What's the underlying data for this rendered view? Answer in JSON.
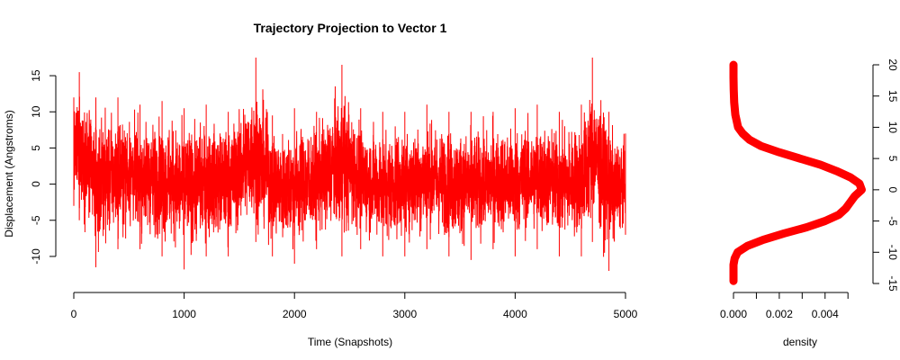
{
  "chart_data": [
    {
      "type": "line",
      "title": "Trajectory Projection to Vector 1",
      "xlabel": "Time (Snapshots)",
      "ylabel": "Displacement (Angstroms)",
      "xlim": [
        0,
        5000
      ],
      "ylim": [
        -12.5,
        18
      ],
      "x_ticks": [
        0,
        1000,
        2000,
        3000,
        4000,
        5000
      ],
      "y_ticks": [
        -10,
        -5,
        0,
        5,
        10,
        15
      ],
      "n_points": 5000,
      "grid": false,
      "colors": {
        "line": "#ff0000",
        "axis": "#000000"
      },
      "envelope": [
        {
          "x": 0,
          "min": -3,
          "max": 12
        },
        {
          "x": 50,
          "min": -5,
          "max": 15.5
        },
        {
          "x": 200,
          "min": -11.5,
          "max": 12
        },
        {
          "x": 400,
          "min": -9,
          "max": 12
        },
        {
          "x": 600,
          "min": -9,
          "max": 11
        },
        {
          "x": 800,
          "min": -10,
          "max": 11.5
        },
        {
          "x": 1000,
          "min": -11.8,
          "max": 10.5
        },
        {
          "x": 1200,
          "min": -10,
          "max": 11
        },
        {
          "x": 1400,
          "min": -10,
          "max": 10
        },
        {
          "x": 1650,
          "min": -8,
          "max": 17.5
        },
        {
          "x": 1800,
          "min": -10,
          "max": 9.5
        },
        {
          "x": 2000,
          "min": -11,
          "max": 10.5
        },
        {
          "x": 2200,
          "min": -9,
          "max": 10
        },
        {
          "x": 2430,
          "min": -10,
          "max": 16.5
        },
        {
          "x": 2600,
          "min": -9,
          "max": 10.5
        },
        {
          "x": 2800,
          "min": -10,
          "max": 10
        },
        {
          "x": 3000,
          "min": -10,
          "max": 10
        },
        {
          "x": 3200,
          "min": -9,
          "max": 11
        },
        {
          "x": 3400,
          "min": -10,
          "max": 10
        },
        {
          "x": 3600,
          "min": -10.5,
          "max": 10
        },
        {
          "x": 3800,
          "min": -9,
          "max": 10
        },
        {
          "x": 4000,
          "min": -10,
          "max": 10.5
        },
        {
          "x": 4200,
          "min": -9,
          "max": 11
        },
        {
          "x": 4400,
          "min": -10,
          "max": 10
        },
        {
          "x": 4600,
          "min": -10,
          "max": 11
        },
        {
          "x": 4700,
          "min": -8,
          "max": 17.5
        },
        {
          "x": 4850,
          "min": -12,
          "max": 10
        },
        {
          "x": 5000,
          "min": -7,
          "max": 7
        }
      ]
    },
    {
      "type": "area",
      "title": "",
      "xlabel": "density",
      "ylabel": "",
      "xlim": [
        0,
        0.0057
      ],
      "ylim": [
        -15,
        20
      ],
      "x_ticks": [
        0.0,
        0.002,
        0.004
      ],
      "x_tick_labels": [
        "0.000",
        "0.002",
        "0.004"
      ],
      "y_ticks": [
        -15,
        -10,
        -5,
        0,
        5,
        10,
        15,
        20
      ],
      "y_axis_side": "right",
      "colors": {
        "line": "#ff0000",
        "axis": "#000000"
      },
      "density": [
        {
          "y": -14.6,
          "d": 0.0
        },
        {
          "y": -12.0,
          "d": 0.0
        },
        {
          "y": -11.0,
          "d": 5e-05
        },
        {
          "y": -10.0,
          "d": 0.00018
        },
        {
          "y": -9.0,
          "d": 0.0006
        },
        {
          "y": -8.0,
          "d": 0.0013
        },
        {
          "y": -7.0,
          "d": 0.0022
        },
        {
          "y": -6.0,
          "d": 0.0032
        },
        {
          "y": -5.0,
          "d": 0.004
        },
        {
          "y": -4.0,
          "d": 0.0046
        },
        {
          "y": -3.0,
          "d": 0.0049
        },
        {
          "y": -2.0,
          "d": 0.0051
        },
        {
          "y": -1.0,
          "d": 0.0053
        },
        {
          "y": 0.0,
          "d": 0.0056
        },
        {
          "y": 1.0,
          "d": 0.0055
        },
        {
          "y": 2.0,
          "d": 0.0051
        },
        {
          "y": 3.0,
          "d": 0.0045
        },
        {
          "y": 4.0,
          "d": 0.0038
        },
        {
          "y": 5.0,
          "d": 0.0029
        },
        {
          "y": 6.0,
          "d": 0.002
        },
        {
          "y": 7.0,
          "d": 0.0012
        },
        {
          "y": 8.0,
          "d": 0.0007
        },
        {
          "y": 9.0,
          "d": 0.0004
        },
        {
          "y": 10.0,
          "d": 0.0002
        },
        {
          "y": 12.0,
          "d": 8e-05
        },
        {
          "y": 14.0,
          "d": 3e-05
        },
        {
          "y": 16.0,
          "d": 1e-05
        },
        {
          "y": 18.0,
          "d": 0.0
        },
        {
          "y": 20.0,
          "d": 0.0
        }
      ]
    }
  ]
}
